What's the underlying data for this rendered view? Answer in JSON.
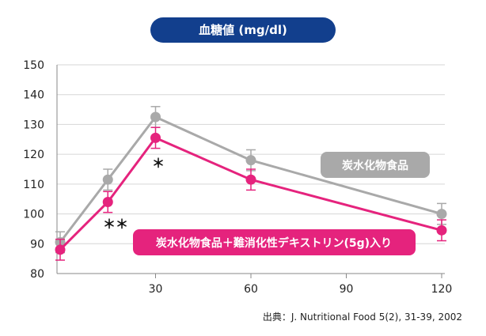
{
  "chart_data": {
    "type": "line",
    "title": "血糖値 (mg/dl)",
    "x": [
      0,
      15,
      30,
      60,
      120
    ],
    "xticks": [
      "30",
      "60",
      "90",
      "120"
    ],
    "xtick_values": [
      30,
      60,
      90,
      120
    ],
    "yticks": [
      "150",
      "140",
      "130",
      "120",
      "110",
      "100",
      "90",
      "80"
    ],
    "ylim": [
      80,
      150
    ],
    "xlim": [
      -1,
      121
    ],
    "series": [
      {
        "name": "炭水化物食品",
        "color": "#a9a9a9",
        "values": [
          90.5,
          111.5,
          132.5,
          118,
          100
        ],
        "errors": [
          3.5,
          3.5,
          3.5,
          3.5,
          3.5
        ]
      },
      {
        "name": "炭水化物食品＋難消化性デキストリン(5g)入り",
        "color": "#e5237d",
        "values": [
          88,
          104,
          125.5,
          111.5,
          94.5
        ],
        "errors": [
          3.5,
          3.5,
          3.5,
          3.5,
          3.5
        ]
      }
    ],
    "annotations": [
      {
        "text": "＊",
        "x": 30,
        "y": 122
      },
      {
        "text": "＊＊",
        "x": 15,
        "y": 101
      }
    ],
    "source": "出典：J. Nutritional Food 5(2), 31-39, 2002"
  }
}
